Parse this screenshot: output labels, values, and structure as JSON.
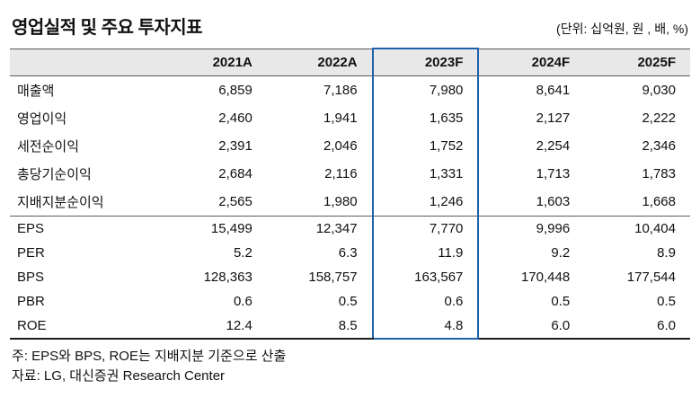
{
  "title": "영업실적 및 주요 투자지표",
  "unit_note": "(단위: 십억원, 원 , 배, %)",
  "accent_color": "#1f62ab",
  "header_bg_color": "#e8e8e8",
  "table": {
    "columns": [
      "",
      "2021A",
      "2022A",
      "2023F",
      "2024F",
      "2025F"
    ],
    "highlight_column": "2023F",
    "highlight_index": 3,
    "group1": [
      {
        "label": "매출액",
        "values": [
          "6,859",
          "7,186",
          "7,980",
          "8,641",
          "9,030"
        ]
      },
      {
        "label": "영업이익",
        "values": [
          "2,460",
          "1,941",
          "1,635",
          "2,127",
          "2,222"
        ]
      },
      {
        "label": "세전순이익",
        "values": [
          "2,391",
          "2,046",
          "1,752",
          "2,254",
          "2,346"
        ]
      },
      {
        "label": "총당기순이익",
        "values": [
          "2,684",
          "2,116",
          "1,331",
          "1,713",
          "1,783"
        ]
      },
      {
        "label": "지배지분순이익",
        "values": [
          "2,565",
          "1,980",
          "1,246",
          "1,603",
          "1,668"
        ]
      }
    ],
    "group2": [
      {
        "label": "EPS",
        "values": [
          "15,499",
          "12,347",
          "7,770",
          "9,996",
          "10,404"
        ]
      },
      {
        "label": "PER",
        "values": [
          "5.2",
          "6.3",
          "11.9",
          "9.2",
          "8.9"
        ]
      },
      {
        "label": "BPS",
        "values": [
          "128,363",
          "158,757",
          "163,567",
          "170,448",
          "177,544"
        ]
      },
      {
        "label": "PBR",
        "values": [
          "0.6",
          "0.5",
          "0.6",
          "0.5",
          "0.5"
        ]
      },
      {
        "label": "ROE",
        "values": [
          "12.4",
          "8.5",
          "4.8",
          "6.0",
          "6.0"
        ]
      }
    ]
  },
  "notes": [
    "주: EPS와 BPS, ROE는 지배지분 기준으로 산출",
    "자료: LG, 대신증권 Research Center"
  ]
}
